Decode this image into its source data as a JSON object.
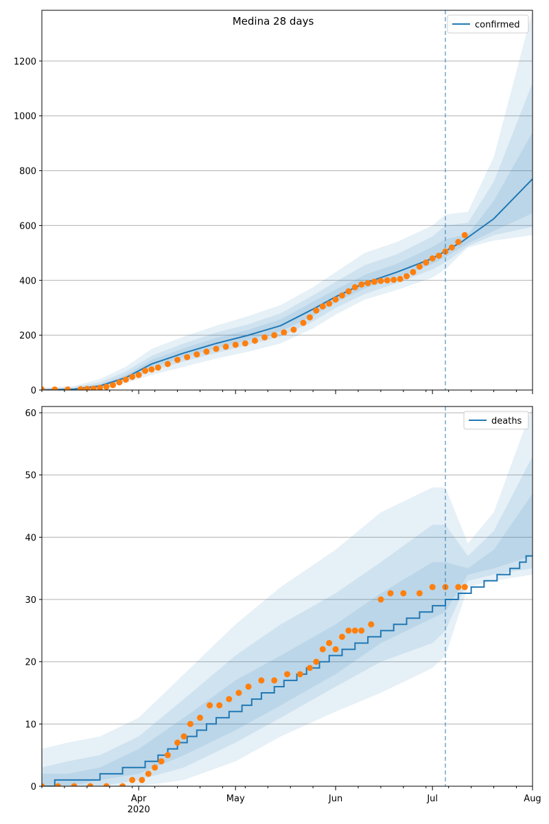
{
  "chart_data": [
    {
      "type": "line",
      "title": "Medina 28 days",
      "xlabel": "",
      "ylabel": "",
      "xlim": [
        "2020-03-02",
        "2020-08-01"
      ],
      "ylim": [
        0,
        1385
      ],
      "grid": "y",
      "legend": {
        "position": "top-right",
        "entries": [
          "confirmed"
        ]
      },
      "colors": {
        "model": "#1f77b4",
        "observed": "#ff7f0e",
        "band": "#1f77b4",
        "grid": "#b0b0b0"
      },
      "x_ticks": [
        {
          "date": "2020-04-01",
          "label": "Apr",
          "sublabel": "2020"
        },
        {
          "date": "2020-05-01",
          "label": "May",
          "sublabel": ""
        },
        {
          "date": "2020-06-01",
          "label": "Jun",
          "sublabel": ""
        },
        {
          "date": "2020-07-01",
          "label": "Jul",
          "sublabel": ""
        },
        {
          "date": "2020-08-01",
          "label": "Aug",
          "sublabel": ""
        }
      ],
      "y_ticks": [
        0,
        200,
        400,
        600,
        800,
        1000,
        1200
      ],
      "forecast_start": "2020-07-05",
      "model_median": {
        "x": [
          "2020-03-02",
          "2020-03-12",
          "2020-03-20",
          "2020-03-28",
          "2020-04-05",
          "2020-04-15",
          "2020-04-25",
          "2020-05-05",
          "2020-05-15",
          "2020-05-25",
          "2020-06-01",
          "2020-06-10",
          "2020-06-20",
          "2020-07-01",
          "2020-07-10",
          "2020-07-20",
          "2020-08-01"
        ],
        "y": [
          0,
          3,
          15,
          45,
          95,
          135,
          170,
          200,
          235,
          295,
          340,
          390,
          430,
          480,
          540,
          625,
          770
        ]
      },
      "bands": [
        {
          "name": "band-outer",
          "x": [
            "2020-03-02",
            "2020-03-12",
            "2020-03-20",
            "2020-03-28",
            "2020-04-05",
            "2020-04-15",
            "2020-04-25",
            "2020-05-05",
            "2020-05-15",
            "2020-05-25",
            "2020-06-01",
            "2020-06-10",
            "2020-06-20",
            "2020-07-01",
            "2020-07-05",
            "2020-07-12",
            "2020-07-20",
            "2020-08-01"
          ],
          "low": [
            0,
            0,
            5,
            25,
            55,
            85,
            115,
            140,
            170,
            225,
            275,
            330,
            365,
            410,
            440,
            520,
            545,
            565
          ],
          "high": [
            8,
            15,
            40,
            85,
            150,
            195,
            235,
            270,
            310,
            375,
            430,
            500,
            540,
            600,
            640,
            650,
            850,
            1385
          ]
        },
        {
          "name": "band-middle",
          "x": [
            "2020-03-02",
            "2020-03-12",
            "2020-03-20",
            "2020-03-28",
            "2020-04-05",
            "2020-04-15",
            "2020-04-25",
            "2020-05-05",
            "2020-05-15",
            "2020-05-25",
            "2020-06-01",
            "2020-06-10",
            "2020-06-20",
            "2020-07-01",
            "2020-07-05",
            "2020-07-12",
            "2020-07-20",
            "2020-08-01"
          ],
          "low": [
            0,
            1,
            8,
            32,
            70,
            105,
            135,
            165,
            195,
            250,
            300,
            350,
            390,
            440,
            465,
            525,
            565,
            595
          ],
          "high": [
            5,
            10,
            28,
            68,
            125,
            170,
            210,
            240,
            280,
            345,
            395,
            455,
            495,
            560,
            600,
            610,
            760,
            1120
          ]
        },
        {
          "name": "band-inner",
          "x": [
            "2020-03-02",
            "2020-03-12",
            "2020-03-20",
            "2020-03-28",
            "2020-04-05",
            "2020-04-15",
            "2020-04-25",
            "2020-05-05",
            "2020-05-15",
            "2020-05-25",
            "2020-06-01",
            "2020-06-10",
            "2020-06-20",
            "2020-07-01",
            "2020-07-05",
            "2020-07-12",
            "2020-07-20",
            "2020-08-01"
          ],
          "low": [
            0,
            2,
            11,
            38,
            82,
            120,
            152,
            182,
            215,
            270,
            320,
            370,
            410,
            460,
            485,
            535,
            580,
            645
          ],
          "high": [
            3,
            6,
            20,
            55,
            110,
            152,
            190,
            220,
            258,
            322,
            366,
            420,
            460,
            522,
            550,
            568,
            690,
            940
          ]
        }
      ],
      "observed": {
        "x": [
          "2020-03-02",
          "2020-03-06",
          "2020-03-10",
          "2020-03-14",
          "2020-03-16",
          "2020-03-18",
          "2020-03-20",
          "2020-03-22",
          "2020-03-24",
          "2020-03-26",
          "2020-03-28",
          "2020-03-30",
          "2020-04-01",
          "2020-04-03",
          "2020-04-05",
          "2020-04-07",
          "2020-04-10",
          "2020-04-13",
          "2020-04-16",
          "2020-04-19",
          "2020-04-22",
          "2020-04-25",
          "2020-04-28",
          "2020-05-01",
          "2020-05-04",
          "2020-05-07",
          "2020-05-10",
          "2020-05-13",
          "2020-05-16",
          "2020-05-19",
          "2020-05-22",
          "2020-05-24",
          "2020-05-26",
          "2020-05-28",
          "2020-05-30",
          "2020-06-01",
          "2020-06-03",
          "2020-06-05",
          "2020-06-07",
          "2020-06-09",
          "2020-06-11",
          "2020-06-13",
          "2020-06-15",
          "2020-06-17",
          "2020-06-19",
          "2020-06-21",
          "2020-06-23",
          "2020-06-25",
          "2020-06-27",
          "2020-06-29",
          "2020-07-01",
          "2020-07-03",
          "2020-07-05",
          "2020-07-07",
          "2020-07-09",
          "2020-07-11"
        ],
        "y": [
          2,
          2,
          2,
          3,
          4,
          5,
          8,
          12,
          18,
          28,
          38,
          48,
          55,
          70,
          75,
          82,
          95,
          110,
          120,
          130,
          140,
          150,
          158,
          165,
          170,
          180,
          192,
          200,
          210,
          220,
          245,
          265,
          290,
          305,
          315,
          330,
          345,
          360,
          375,
          385,
          390,
          395,
          398,
          400,
          402,
          405,
          415,
          430,
          450,
          465,
          480,
          490,
          505,
          520,
          540,
          565
        ]
      }
    },
    {
      "type": "line",
      "title": "",
      "xlabel": "",
      "ylabel": "",
      "xlim": [
        "2020-03-02",
        "2020-08-01"
      ],
      "ylim": [
        0,
        61
      ],
      "grid": "y",
      "legend": {
        "position": "top-right",
        "entries": [
          "deaths"
        ]
      },
      "colors": {
        "model": "#1f77b4",
        "observed": "#ff7f0e",
        "band": "#1f77b4",
        "grid": "#b0b0b0"
      },
      "x_ticks": [
        {
          "date": "2020-04-01",
          "label": "Apr",
          "sublabel": "2020"
        },
        {
          "date": "2020-05-01",
          "label": "May",
          "sublabel": ""
        },
        {
          "date": "2020-06-01",
          "label": "Jun",
          "sublabel": ""
        },
        {
          "date": "2020-07-01",
          "label": "Jul",
          "sublabel": ""
        },
        {
          "date": "2020-08-01",
          "label": "Aug",
          "sublabel": ""
        }
      ],
      "y_ticks": [
        0,
        10,
        20,
        30,
        40,
        50,
        60
      ],
      "forecast_start": "2020-07-05",
      "model_median": {
        "x": [
          "2020-03-02",
          "2020-03-06",
          "2020-03-06",
          "2020-03-20",
          "2020-03-20",
          "2020-03-27",
          "2020-03-27",
          "2020-04-03",
          "2020-04-03",
          "2020-04-07",
          "2020-04-07",
          "2020-04-10",
          "2020-04-10",
          "2020-04-13",
          "2020-04-13",
          "2020-04-16",
          "2020-04-16",
          "2020-04-19",
          "2020-04-19",
          "2020-04-22",
          "2020-04-22",
          "2020-04-25",
          "2020-04-25",
          "2020-04-29",
          "2020-04-29",
          "2020-05-03",
          "2020-05-03",
          "2020-05-06",
          "2020-05-06",
          "2020-05-09",
          "2020-05-09",
          "2020-05-13",
          "2020-05-13",
          "2020-05-16",
          "2020-05-16",
          "2020-05-20",
          "2020-05-20",
          "2020-05-23",
          "2020-05-23",
          "2020-05-27",
          "2020-05-27",
          "2020-05-30",
          "2020-05-30",
          "2020-06-03",
          "2020-06-03",
          "2020-06-07",
          "2020-06-07",
          "2020-06-11",
          "2020-06-11",
          "2020-06-15",
          "2020-06-15",
          "2020-06-19",
          "2020-06-19",
          "2020-06-23",
          "2020-06-23",
          "2020-06-27",
          "2020-06-27",
          "2020-07-01",
          "2020-07-01",
          "2020-07-05",
          "2020-07-05",
          "2020-07-09",
          "2020-07-09",
          "2020-07-13",
          "2020-07-13",
          "2020-07-17",
          "2020-07-17",
          "2020-07-21",
          "2020-07-21",
          "2020-07-25",
          "2020-07-25",
          "2020-07-28",
          "2020-07-28",
          "2020-07-30",
          "2020-07-30",
          "2020-08-01"
        ],
        "y": [
          0,
          0,
          1,
          1,
          2,
          2,
          3,
          3,
          4,
          4,
          5,
          5,
          6,
          6,
          7,
          7,
          8,
          8,
          9,
          9,
          10,
          10,
          11,
          11,
          12,
          12,
          13,
          13,
          14,
          14,
          15,
          15,
          16,
          16,
          17,
          17,
          18,
          18,
          19,
          19,
          20,
          20,
          21,
          21,
          22,
          22,
          23,
          23,
          24,
          24,
          25,
          25,
          26,
          26,
          27,
          27,
          28,
          28,
          29,
          29,
          30,
          30,
          31,
          31,
          32,
          32,
          33,
          33,
          34,
          34,
          35,
          35,
          36,
          36,
          37,
          37
        ]
      },
      "bands": [
        {
          "name": "band-outer",
          "x": [
            "2020-03-02",
            "2020-03-10",
            "2020-03-20",
            "2020-04-01",
            "2020-04-15",
            "2020-05-01",
            "2020-05-15",
            "2020-06-01",
            "2020-06-15",
            "2020-07-01",
            "2020-07-05",
            "2020-07-12",
            "2020-07-20",
            "2020-08-01"
          ],
          "low": [
            0,
            0,
            0,
            0,
            1,
            4,
            8,
            12,
            15,
            19,
            21,
            32,
            33,
            34
          ],
          "high": [
            6,
            7,
            8,
            11,
            18,
            26,
            32,
            38,
            44,
            48,
            48,
            39,
            44,
            61
          ]
        },
        {
          "name": "band-middle",
          "x": [
            "2020-03-02",
            "2020-03-10",
            "2020-03-20",
            "2020-04-01",
            "2020-04-15",
            "2020-05-01",
            "2020-05-15",
            "2020-06-01",
            "2020-06-15",
            "2020-07-01",
            "2020-07-05",
            "2020-07-12",
            "2020-07-20",
            "2020-08-01"
          ],
          "low": [
            0,
            0,
            0,
            1,
            3,
            7,
            11,
            16,
            20,
            23,
            25,
            33,
            34,
            35
          ],
          "high": [
            3,
            4,
            5,
            8,
            14,
            21,
            26,
            31,
            36,
            42,
            42,
            37,
            41,
            53
          ]
        },
        {
          "name": "band-inner",
          "x": [
            "2020-03-02",
            "2020-03-10",
            "2020-03-20",
            "2020-04-01",
            "2020-04-15",
            "2020-05-01",
            "2020-05-15",
            "2020-06-01",
            "2020-06-15",
            "2020-07-01",
            "2020-07-05",
            "2020-07-12",
            "2020-07-20",
            "2020-08-01"
          ],
          "low": [
            0,
            0,
            1,
            2,
            5,
            9,
            13,
            18,
            23,
            27,
            28,
            34,
            35,
            37
          ],
          "high": [
            2,
            2,
            3,
            6,
            11,
            17,
            21,
            26,
            31,
            36,
            36,
            35,
            38,
            47
          ]
        }
      ],
      "observed": {
        "x": [
          "2020-03-02",
          "2020-03-07",
          "2020-03-12",
          "2020-03-17",
          "2020-03-22",
          "2020-03-27",
          "2020-03-30",
          "2020-04-02",
          "2020-04-04",
          "2020-04-06",
          "2020-04-08",
          "2020-04-10",
          "2020-04-13",
          "2020-04-15",
          "2020-04-17",
          "2020-04-20",
          "2020-04-23",
          "2020-04-26",
          "2020-04-29",
          "2020-05-02",
          "2020-05-05",
          "2020-05-09",
          "2020-05-13",
          "2020-05-17",
          "2020-05-21",
          "2020-05-24",
          "2020-05-26",
          "2020-05-28",
          "2020-05-30",
          "2020-06-01",
          "2020-06-03",
          "2020-06-05",
          "2020-06-07",
          "2020-06-09",
          "2020-06-12",
          "2020-06-15",
          "2020-06-18",
          "2020-06-22",
          "2020-06-27",
          "2020-07-01",
          "2020-07-05",
          "2020-07-09",
          "2020-07-11"
        ],
        "y": [
          0,
          0,
          0,
          0,
          0,
          0,
          1,
          1,
          2,
          3,
          4,
          5,
          7,
          8,
          10,
          11,
          13,
          13,
          14,
          15,
          16,
          17,
          17,
          18,
          18,
          19,
          20,
          22,
          23,
          22,
          24,
          25,
          25,
          25,
          26,
          30,
          31,
          31,
          31,
          32,
          32,
          32,
          32
        ]
      }
    }
  ]
}
